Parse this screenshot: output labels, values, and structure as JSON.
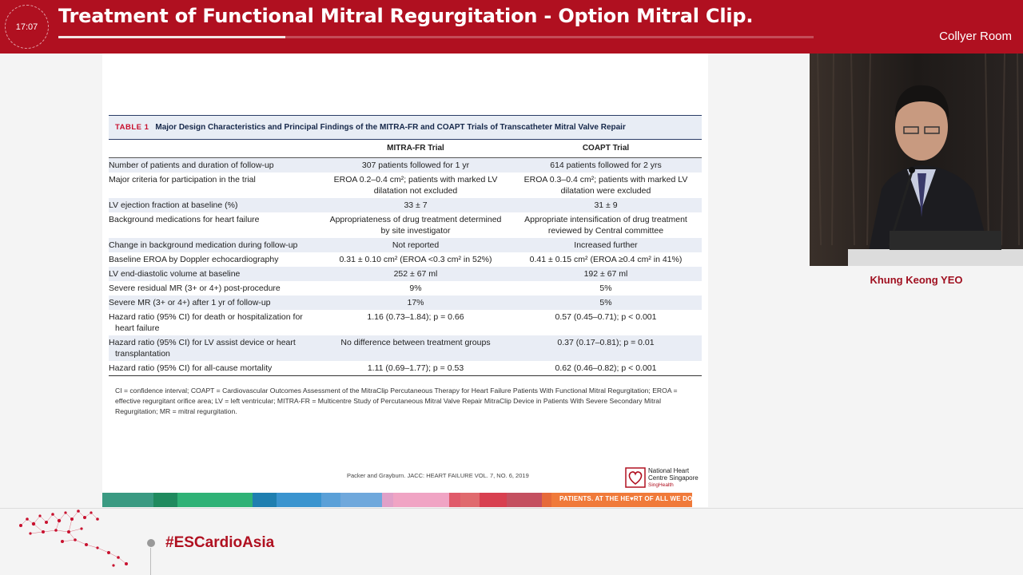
{
  "header": {
    "clock": "17:07",
    "title": "Treatment of Functional Mitral Regurgitation - Option Mitral Clip.",
    "room": "Collyer Room",
    "progress": 0.3,
    "color": "#b01020"
  },
  "slide": {
    "table_label": "TABLE 1",
    "table_title": "Major Design Characteristics and Principal Findings of the MITRA-FR and COAPT Trials of Transcatheter Mitral Valve Repair",
    "columns": [
      "",
      "MITRA-FR Trial",
      "COAPT Trial"
    ],
    "rows": [
      {
        "label": "Number of patients and duration of follow-up",
        "mitra": "307 patients followed for 1 yr",
        "coapt": "614 patients followed for 2 yrs"
      },
      {
        "label": "Major criteria for participation in the trial",
        "mitra": "EROA 0.2–0.4 cm²; patients with marked LV dilatation not excluded",
        "coapt": "EROA 0.3–0.4 cm²; patients with marked LV dilatation were excluded"
      },
      {
        "label": "LV ejection fraction at baseline (%)",
        "mitra": "33 ± 7",
        "coapt": "31 ± 9"
      },
      {
        "label": "Background medications for heart failure",
        "mitra": "Appropriateness of drug treatment determined by site investigator",
        "coapt": "Appropriate intensification of drug treatment reviewed by Central committee"
      },
      {
        "label": "Change in background medication during follow-up",
        "mitra": "Not reported",
        "coapt": "Increased further"
      },
      {
        "label": "Baseline EROA by Doppler echocardiography",
        "mitra": "0.31 ± 0.10 cm² (EROA <0.3 cm² in 52%)",
        "coapt": "0.41 ± 0.15 cm² (EROA ≥0.4 cm² in 41%)"
      },
      {
        "label": "LV end-diastolic volume at baseline",
        "mitra": "252 ± 67 ml",
        "coapt": "192 ± 67 ml"
      },
      {
        "label": "Severe residual MR (3+ or 4+) post-procedure",
        "mitra": "9%",
        "coapt": "5%"
      },
      {
        "label": "Severe MR (3+ or 4+) after 1 yr of follow-up",
        "mitra": "17%",
        "coapt": "5%"
      },
      {
        "label": "Hazard ratio (95% CI) for death or hospitalization for heart failure",
        "mitra": "1.16 (0.73–1.84); p = 0.66",
        "coapt": "0.57 (0.45–0.71); p < 0.001"
      },
      {
        "label": "Hazard ratio (95% CI) for LV assist device or heart transplantation",
        "mitra": "No difference between treatment groups",
        "coapt": "0.37 (0.17–0.81); p = 0.01"
      },
      {
        "label": "Hazard ratio (95% CI) for all-cause mortality",
        "mitra": "1.11 (0.69–1.77); p = 0.53",
        "coapt": "0.62 (0.46–0.82); p < 0.001"
      }
    ],
    "footnote": "CI = confidence interval; COAPT = Cardiovascular Outcomes Assessment of the MitraClip Percutaneous Therapy for Heart Failure Patients With Functional Mitral Regurgitation; EROA = effective regurgitant orifice area; LV = left ventricular; MITRA-FR = Multicentre Study of Percutaneous Mitral Valve Repair MitraClip Device in Patients With Severe Secondary Mitral Regurgitation; MR = mitral regurgitation.",
    "citation": "Packer  and Grayburn. JACC: HEART FAILURE VOL. 7, NO. 6, 2019",
    "logo_line1": "National Heart",
    "logo_line2": "Centre Singapore",
    "logo_line3": "SingHealth",
    "tagline": "PATIENTS. AT THE HE♥RT OF ALL WE DO."
  },
  "speaker": {
    "name": "Khung Keong YEO"
  },
  "footer": {
    "hashtag": "#ESCardioAsia"
  }
}
